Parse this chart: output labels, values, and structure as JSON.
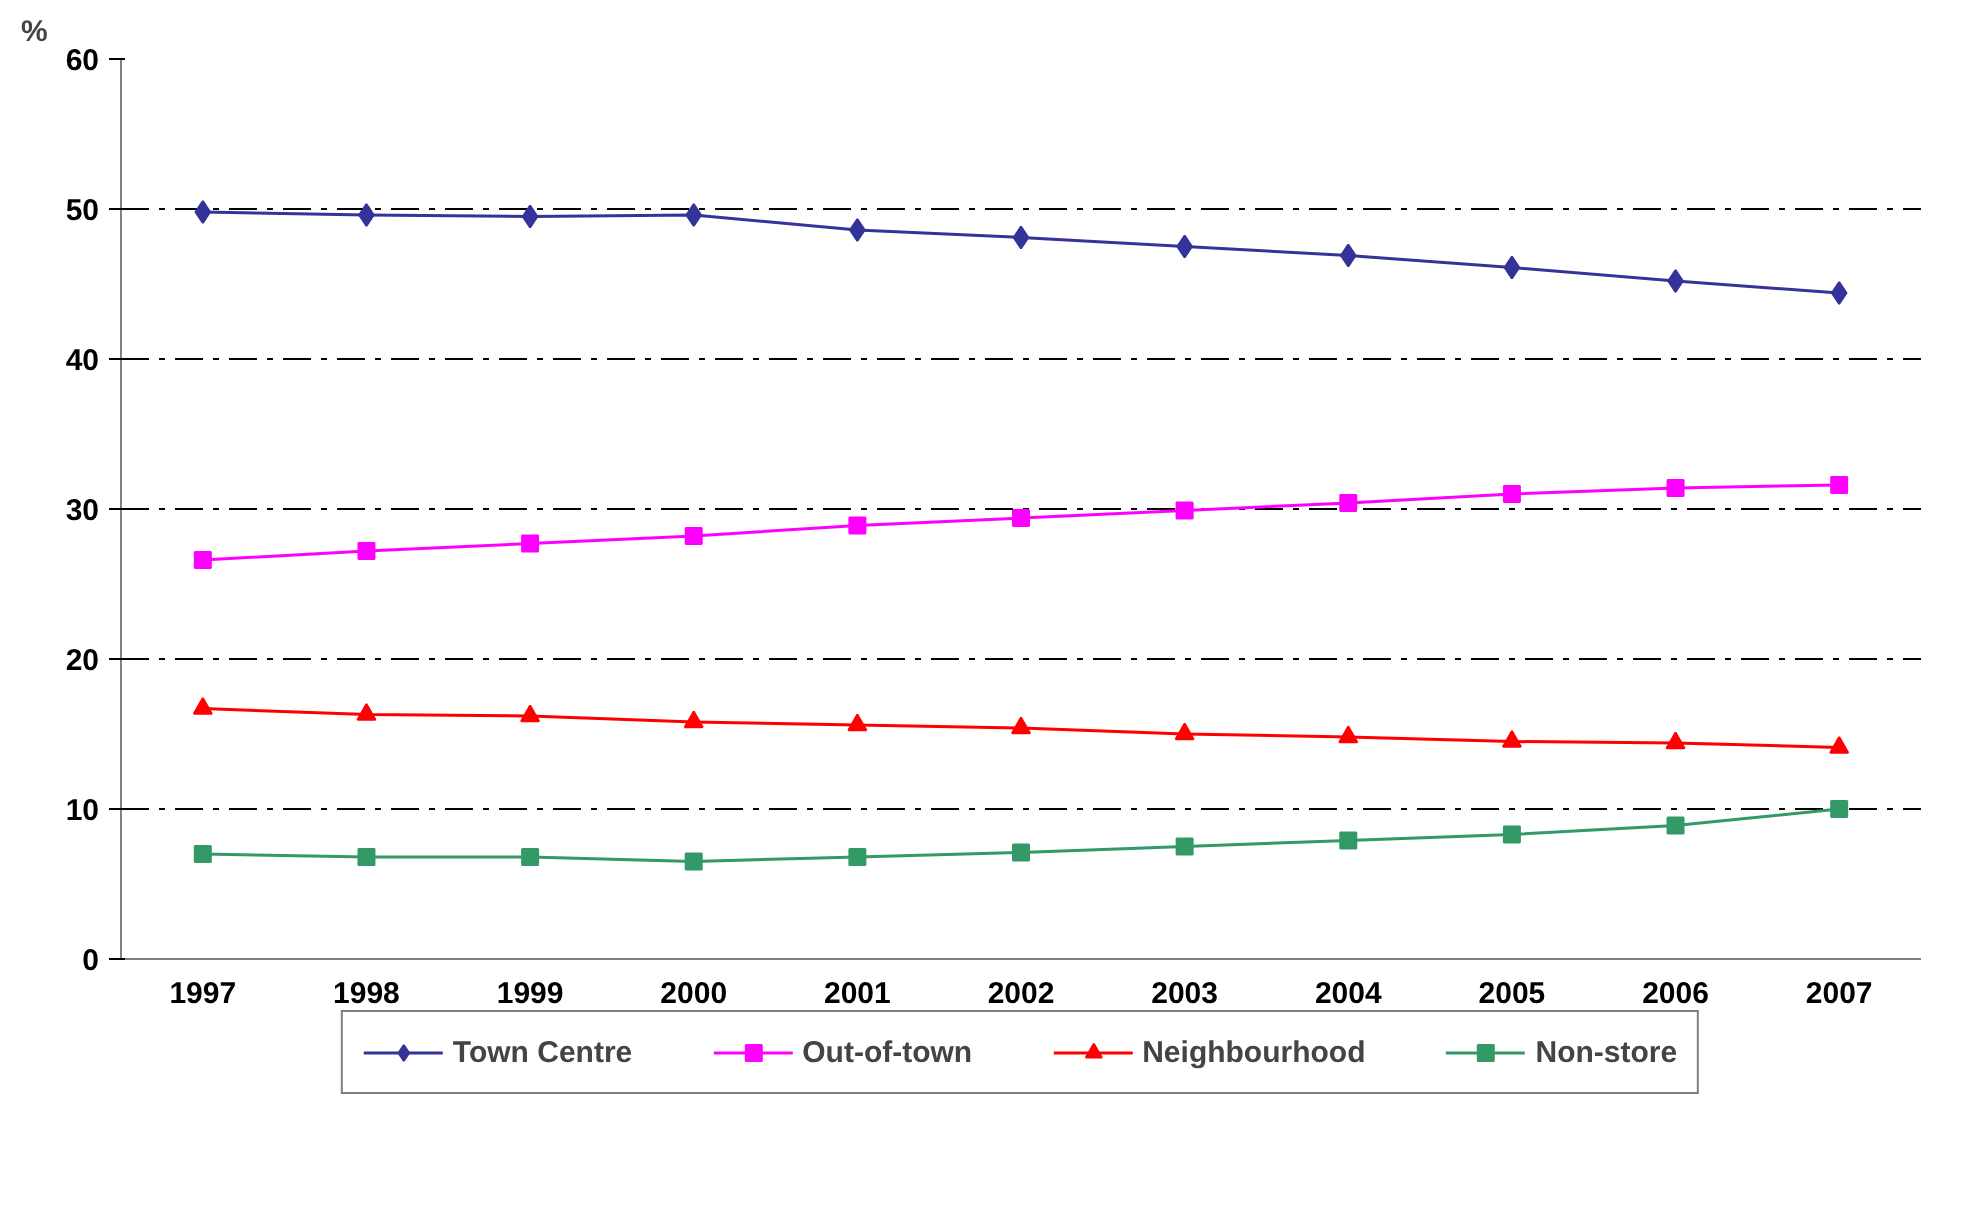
{
  "chart_data": {
    "type": "line",
    "ylabel": "%",
    "categories": [
      "1997",
      "1998",
      "1999",
      "2000",
      "2001",
      "2002",
      "2003",
      "2004",
      "2005",
      "2006",
      "2007"
    ],
    "ylim": [
      0,
      60
    ],
    "yticks": [
      0,
      10,
      20,
      30,
      40,
      50,
      60
    ],
    "grid": "y",
    "legend": "bottom",
    "line_style": "solid",
    "series": [
      {
        "name": "Town Centre",
        "color": "#333399",
        "marker": "diamond",
        "values": [
          49.8,
          49.6,
          49.5,
          49.6,
          48.6,
          48.1,
          47.5,
          46.9,
          46.1,
          45.2,
          44.4
        ]
      },
      {
        "name": "Out-of-town",
        "color": "#ff00ff",
        "marker": "square",
        "values": [
          26.6,
          27.2,
          27.7,
          28.2,
          28.9,
          29.4,
          29.9,
          30.4,
          31.0,
          31.4,
          31.6
        ]
      },
      {
        "name": "Neighbourhood",
        "color": "#ff0000",
        "marker": "triangle",
        "values": [
          16.7,
          16.3,
          16.2,
          15.8,
          15.6,
          15.4,
          15.0,
          14.8,
          14.5,
          14.4,
          14.1
        ]
      },
      {
        "name": "Non-store",
        "color": "#339966",
        "marker": "square",
        "values": [
          7.0,
          6.8,
          6.8,
          6.5,
          6.8,
          7.1,
          7.5,
          7.9,
          8.3,
          8.9,
          10.0
        ]
      }
    ]
  }
}
